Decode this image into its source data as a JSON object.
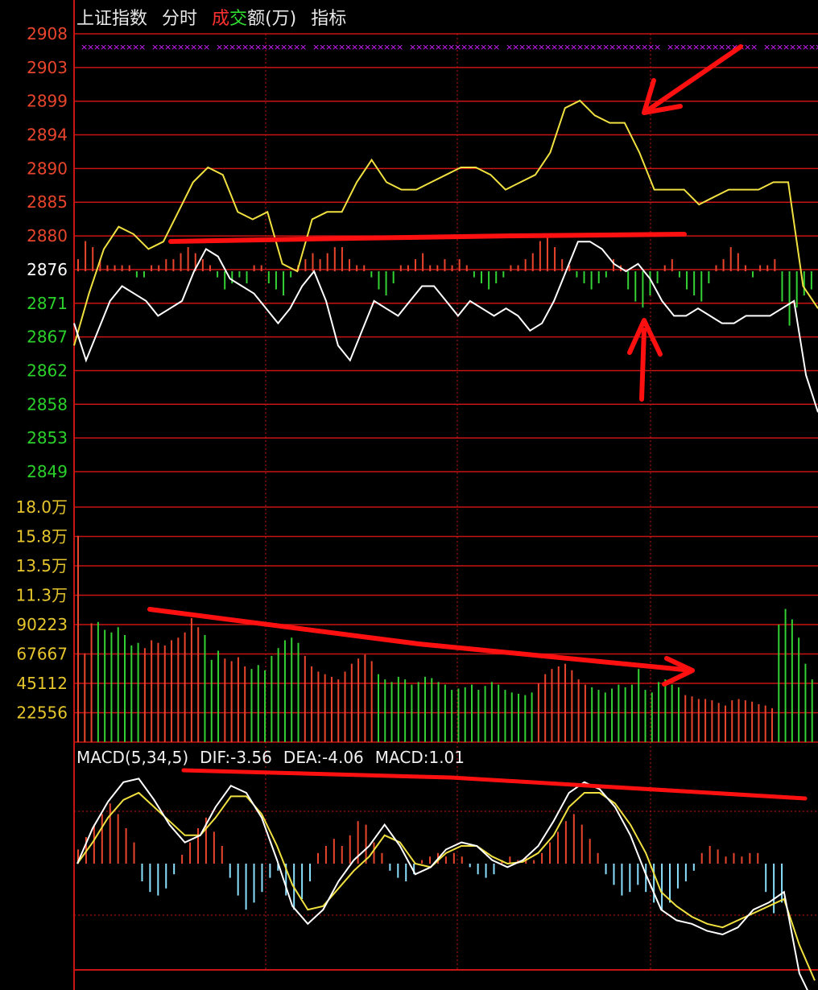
{
  "header": {
    "index_name": "上证指数",
    "tab_intraday": "分时",
    "volume_label_parts": [
      "成",
      "交",
      "额(万)"
    ],
    "tab_indicator": "指标"
  },
  "colors": {
    "background": "#000000",
    "grid": "#c81414",
    "up_label": "#e8452c",
    "down_label": "#2bd12b",
    "neutral_label": "#ffffff",
    "volume_label": "#e6c62c",
    "price_line": "#ffffff",
    "avg_line": "#f0e040",
    "up_bar": "#e8452c",
    "down_bar": "#33d133",
    "macd_up": "#e8452c",
    "macd_down": "#8ae0ff",
    "dif_line": "#ffffff",
    "dea_line": "#f0e040",
    "annotation": "#ff1010",
    "magenta_marker": "#d020ff"
  },
  "chart_data": [
    {
      "type": "line",
      "name": "price",
      "base": 2876,
      "yticks": [
        2908,
        2903,
        2899,
        2894,
        2890,
        2885,
        2880,
        2876,
        2871,
        2867,
        2862,
        2858,
        2853,
        2849
      ],
      "ylim": [
        2849,
        2908
      ],
      "series": [
        {
          "values": [
            2869,
            2864,
            2868,
            2872,
            2874,
            2873,
            2872,
            2870,
            2871,
            2872,
            2876,
            2879,
            2878,
            2875,
            2874,
            2873,
            2871,
            2869,
            2871,
            2874,
            2876,
            2872,
            2866,
            2864,
            2868,
            2872,
            2871,
            2870,
            2872,
            2874,
            2874,
            2872,
            2870,
            2872,
            2871,
            2870,
            2871,
            2870,
            2868,
            2869,
            2872,
            2876,
            2880,
            2880,
            2879,
            2877,
            2876,
            2877,
            2875,
            2872,
            2870,
            2870,
            2871,
            2870,
            2869,
            2869,
            2870,
            2870,
            2870,
            2871,
            2872,
            2862,
            2857
          ]
        },
        {
          "values": [
            2866,
            2873,
            2879,
            2882,
            2881,
            2879,
            2880,
            2884,
            2888,
            2890,
            2889,
            2884,
            2883,
            2884,
            2877,
            2876,
            2883,
            2884,
            2884,
            2888,
            2891,
            2888,
            2887,
            2887,
            2888,
            2889,
            2890,
            2890,
            2889,
            2887,
            2888,
            2889,
            2892,
            2898,
            2899,
            2897,
            2896,
            2896,
            2892,
            2887,
            2887,
            2887,
            2885,
            2886,
            2887,
            2887,
            2887,
            2888,
            2888,
            2874,
            2871
          ]
        }
      ],
      "volume_bars": [
        2,
        5,
        4,
        2,
        1,
        1,
        1,
        1,
        -1,
        -1,
        1,
        1,
        2,
        2,
        3,
        4,
        3,
        2,
        1,
        -1,
        -3,
        -2,
        -1,
        -2,
        1,
        1,
        -2,
        -3,
        -4,
        -1,
        1,
        2,
        3,
        2,
        3,
        4,
        4,
        2,
        1,
        1,
        -1,
        -3,
        -4,
        -2,
        1,
        1,
        2,
        3,
        1,
        1,
        2,
        1,
        2,
        1,
        -1,
        -2,
        -3,
        -2,
        -1,
        1,
        1,
        2,
        3,
        5,
        6,
        4,
        2,
        1,
        -1,
        -2,
        -3,
        -2,
        -1,
        2,
        1,
        -3,
        -5,
        -6,
        -4,
        -2,
        1,
        2,
        -1,
        -3,
        -4,
        -5,
        -2,
        1,
        2,
        4,
        3,
        1,
        -1,
        1,
        1,
        2,
        -5,
        -9,
        -6,
        -4,
        -3
      ]
    },
    {
      "type": "bar",
      "name": "turnover",
      "yticks": [
        "18.0万",
        "15.8万",
        "13.5万",
        "11.3万",
        "90223",
        "67667",
        "45112",
        "22556"
      ],
      "ylim": [
        0,
        180000
      ],
      "values": [
        158000,
        68000,
        91000,
        92000,
        86000,
        84000,
        88000,
        82000,
        74000,
        76000,
        72000,
        78000,
        76000,
        74000,
        78000,
        80000,
        84000,
        95000,
        88000,
        82000,
        63000,
        70000,
        64000,
        62000,
        65000,
        58000,
        56000,
        59000,
        55000,
        66000,
        72000,
        78000,
        80000,
        76000,
        66000,
        58000,
        54000,
        52000,
        50000,
        48000,
        54000,
        60000,
        64000,
        67000,
        62000,
        52000,
        48000,
        46000,
        50000,
        48000,
        44000,
        46000,
        50000,
        49000,
        46000,
        44000,
        40000,
        41000,
        42000,
        44000,
        40000,
        43000,
        46000,
        44000,
        40000,
        38000,
        37000,
        36000,
        38000,
        45000,
        52000,
        56000,
        58000,
        60000,
        55000,
        48000,
        44000,
        42000,
        40000,
        38000,
        41000,
        44000,
        42000,
        44000,
        56000,
        40000,
        38000,
        46000,
        48000,
        44000,
        42000,
        36000,
        35000,
        33000,
        33000,
        32000,
        30000,
        28000,
        32000,
        33000,
        32000,
        31000,
        29000,
        28000,
        26000,
        90000,
        102000,
        94000,
        80000,
        60000,
        48000
      ],
      "up": [
        true,
        true,
        true,
        false,
        false,
        false,
        false,
        false,
        false,
        false,
        true,
        true,
        true,
        true,
        true,
        true,
        true,
        true,
        true,
        false,
        false,
        false,
        true,
        true,
        true,
        true,
        false,
        false,
        false,
        false,
        false,
        false,
        false,
        false,
        true,
        true,
        true,
        true,
        true,
        true,
        true,
        true,
        true,
        true,
        true,
        false,
        false,
        false,
        false,
        false,
        false,
        false,
        false,
        false,
        false,
        false,
        false,
        false,
        false,
        false,
        false,
        false,
        false,
        false,
        false,
        false,
        false,
        false,
        false,
        true,
        true,
        true,
        true,
        true,
        true,
        true,
        true,
        false,
        false,
        false,
        false,
        false,
        false,
        false,
        false,
        false,
        false,
        false,
        false,
        false,
        false,
        true,
        true,
        true,
        true,
        true,
        true,
        true,
        true,
        true,
        true,
        true,
        true,
        true,
        true,
        false,
        false,
        false,
        false,
        false,
        false
      ]
    },
    {
      "type": "line",
      "name": "MACD",
      "legend": {
        "title": "MACD(5,34,5)",
        "dif": "DIF:-3.56",
        "dea": "DEA:-4.06",
        "macd": "MACD:1.01"
      },
      "ylim": [
        -6,
        5
      ],
      "series": [
        {
          "values": [
            0,
            2.0,
            3.5,
            4.6,
            4.8,
            3.6,
            2.2,
            1.2,
            1.6,
            3.2,
            4.4,
            4.0,
            2.6,
            0.2,
            -2.4,
            -3.4,
            -2.6,
            -1.0,
            0.2,
            1.0,
            2.2,
            1.0,
            -0.6,
            -0.2,
            0.8,
            1.2,
            1.0,
            0.2,
            -0.2,
            0.2,
            1.0,
            2.4,
            4.0,
            4.6,
            4.2,
            3.2,
            1.6,
            -0.6,
            -2.6,
            -3.2,
            -3.4,
            -3.8,
            -4.0,
            -3.6,
            -2.6,
            -2.2,
            -1.6,
            -6.2,
            -8.0
          ]
        },
        {
          "values": [
            0,
            1.2,
            2.6,
            3.6,
            4.0,
            3.2,
            2.4,
            1.6,
            1.6,
            2.6,
            3.8,
            3.8,
            2.8,
            1.0,
            -1.2,
            -2.6,
            -2.4,
            -1.4,
            -0.4,
            0.4,
            1.6,
            1.2,
            0,
            -0.2,
            0.6,
            1.0,
            1.0,
            0.4,
            0,
            0.1,
            0.6,
            1.6,
            3.2,
            4.0,
            4.0,
            3.4,
            2.2,
            0.6,
            -1.6,
            -2.4,
            -3.0,
            -3.4,
            -3.6,
            -3.2,
            -2.8,
            -2.4,
            -2.0,
            -4.6,
            -6.6
          ]
        }
      ],
      "hist": [
        0.8,
        1.5,
        2.2,
        2.8,
        3.4,
        2.8,
        2.0,
        1.2,
        -1.0,
        -1.6,
        -1.8,
        -1.4,
        -0.6,
        0.5,
        1.2,
        2.0,
        2.6,
        1.8,
        1.0,
        -0.8,
        -1.8,
        -2.6,
        -2.2,
        -1.6,
        -0.8,
        -0.4,
        -1.8,
        -2.6,
        -2.0,
        -1.0,
        0.6,
        1.0,
        1.4,
        1.0,
        1.6,
        2.4,
        2.2,
        1.2,
        0.6,
        -0.4,
        -0.8,
        -1.0,
        -0.6,
        0.2,
        0.4,
        0.6,
        0.4,
        0.6,
        0.4,
        -0.2,
        -0.6,
        -0.8,
        -0.6,
        0.2,
        0.4,
        0.2,
        0.4,
        0.2,
        0.6,
        1.2,
        1.8,
        2.4,
        2.8,
        2.2,
        1.4,
        0.6,
        -0.6,
        -1.2,
        -1.8,
        -1.6,
        -1.2,
        -1.6,
        -2.2,
        -2.6,
        -2.2,
        -1.4,
        -1.0,
        -0.4,
        0.6,
        1.0,
        0.8,
        0.4,
        0.6,
        0.4,
        0.6,
        0.6,
        -1.6,
        -2.8,
        -2.2
      ]
    }
  ]
}
